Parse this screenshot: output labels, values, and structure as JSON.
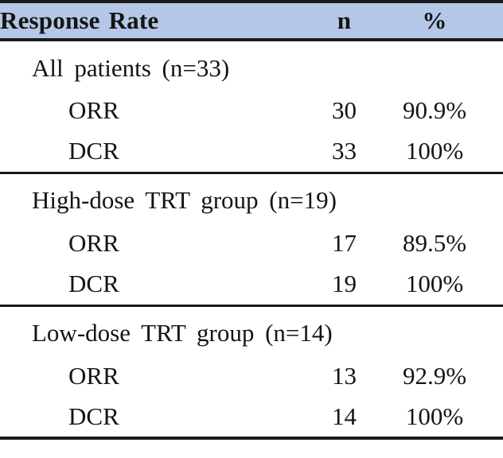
{
  "table": {
    "accent_color": "#b5c7e6",
    "border_color": "#1b1b1b",
    "header": {
      "response_rate": "Response Rate",
      "n": "n",
      "pct": "%"
    },
    "sections": [
      {
        "label": "All patients (n=33)",
        "rows": [
          {
            "label": "ORR",
            "n": "30",
            "pct": "90.9%"
          },
          {
            "label": "DCR",
            "n": "33",
            "pct": "100%"
          }
        ]
      },
      {
        "label": "High-dose TRT group (n=19)",
        "rows": [
          {
            "label": "ORR",
            "n": "17",
            "pct": "89.5%"
          },
          {
            "label": "DCR",
            "n": "19",
            "pct": "100%"
          }
        ]
      },
      {
        "label": "Low-dose TRT group (n=14)",
        "rows": [
          {
            "label": "ORR",
            "n": "13",
            "pct": "92.9%"
          },
          {
            "label": "DCR",
            "n": "14",
            "pct": "100%"
          }
        ]
      }
    ]
  },
  "chart_data": {
    "type": "table",
    "title": "Response Rate",
    "columns": [
      "Response Rate",
      "n",
      "%"
    ],
    "rows": [
      [
        "All patients (n=33)",
        "",
        ""
      ],
      [
        "ORR",
        "30",
        "90.9%"
      ],
      [
        "DCR",
        "33",
        "100%"
      ],
      [
        "High-dose TRT group (n=19)",
        "",
        ""
      ],
      [
        "ORR",
        "17",
        "89.5%"
      ],
      [
        "DCR",
        "19",
        "100%"
      ],
      [
        "Low-dose TRT group (n=14)",
        "",
        ""
      ],
      [
        "ORR",
        "13",
        "92.9%"
      ],
      [
        "DCR",
        "14",
        "100%"
      ]
    ]
  }
}
